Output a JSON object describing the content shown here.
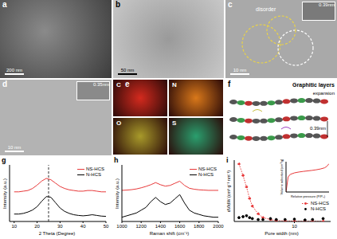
{
  "panels": {
    "a": {
      "label": "a",
      "scale_bar": "200 nm"
    },
    "b": {
      "label": "b",
      "scale_bar": "50 nm"
    },
    "c": {
      "label": "c",
      "scale_bar": "10 nm",
      "annotation": "disorder",
      "inset_label": "0.39nm"
    },
    "d": {
      "label": "d",
      "scale_bar": "10 nm",
      "inset_label": "0.35nm"
    },
    "e": {
      "label": "e",
      "maps": [
        {
          "element": "C",
          "color": "#d42a1e"
        },
        {
          "element": "N",
          "color": "#d9781a"
        },
        {
          "element": "O",
          "color": "#a89a2a"
        },
        {
          "element": "S",
          "color": "#2a9f6e"
        }
      ]
    },
    "f": {
      "label": "f",
      "title": "Graphitic layers",
      "annotation": "expansion",
      "spacing_label": "0.39nm"
    }
  },
  "chart_data": [
    {
      "panel": "g",
      "type": "line",
      "xlabel": "2 Theta (Degree)",
      "ylabel": "Intensity (a.u.)",
      "x": [
        10,
        12,
        14,
        16,
        18,
        20,
        22,
        24,
        26,
        28,
        30,
        32,
        34,
        36,
        38,
        40,
        42,
        44,
        46,
        48,
        50
      ],
      "series": [
        {
          "name": "NS-HCS",
          "color": "#e8393a",
          "line_style": "solid",
          "values": [
            2.2,
            2.2,
            2.25,
            2.3,
            2.45,
            2.7,
            3.0,
            3.2,
            3.1,
            2.85,
            2.6,
            2.45,
            2.35,
            2.3,
            2.25,
            2.25,
            2.3,
            2.3,
            2.25,
            2.2,
            2.2
          ]
        },
        {
          "name": "N-HCS",
          "color": "#000000",
          "line_style": "solid",
          "values": [
            0.55,
            0.55,
            0.6,
            0.7,
            0.85,
            1.1,
            1.5,
            1.85,
            1.8,
            1.4,
            1.0,
            0.75,
            0.6,
            0.5,
            0.45,
            0.42,
            0.45,
            0.5,
            0.45,
            0.4,
            0.38
          ]
        }
      ],
      "xlim": [
        8,
        50
      ],
      "xticks": [
        10,
        20,
        30,
        40,
        50
      ],
      "ylim": [
        0,
        4.2
      ],
      "tick_labels": "x",
      "legend": "upper right",
      "reference_x": 25
    },
    {
      "panel": "h",
      "type": "line",
      "xlabel": "Raman shift (cm⁻¹)",
      "ylabel": "Intensity (a.u.)",
      "x": [
        1000,
        1050,
        1100,
        1150,
        1200,
        1250,
        1300,
        1350,
        1400,
        1450,
        1500,
        1550,
        1600,
        1650,
        1700,
        1750,
        1800,
        1850,
        1900,
        1950,
        2000
      ],
      "series": [
        {
          "name": "NS-HCS",
          "color": "#e8393a",
          "line_style": "solid",
          "values": [
            2.2,
            2.22,
            2.25,
            2.3,
            2.38,
            2.48,
            2.6,
            2.75,
            2.6,
            2.5,
            2.55,
            2.7,
            2.85,
            2.55,
            2.35,
            2.28,
            2.24,
            2.22,
            2.2,
            2.2,
            2.2
          ]
        },
        {
          "name": "N-HCS",
          "color": "#000000",
          "line_style": "solid",
          "values": [
            0.3,
            0.4,
            0.5,
            0.6,
            0.8,
            1.0,
            1.4,
            1.7,
            1.4,
            1.2,
            1.3,
            1.6,
            1.9,
            1.3,
            0.8,
            0.6,
            0.5,
            0.4,
            0.35,
            0.3,
            0.3
          ]
        }
      ],
      "xlim": [
        1000,
        2000
      ],
      "xticks": [
        1000,
        1200,
        1400,
        1600,
        1800,
        2000
      ],
      "ylim": [
        0,
        4
      ],
      "tick_labels": "x",
      "legend": "upper right"
    },
    {
      "panel": "i",
      "type": "scatter",
      "xlabel": "Pore width (nm)",
      "ylabel": "dV/dW (cm³ g⁻¹ nm⁻¹)",
      "log": "x",
      "x": [
        1.2,
        1.4,
        1.6,
        1.8,
        2,
        2.5,
        3,
        4,
        5,
        7,
        10,
        15,
        20,
        30
      ],
      "series": [
        {
          "name": "NS-HCS",
          "color": "#e8393a",
          "marker": "circle",
          "line_style": "dotted",
          "values": [
            3.0,
            2.4,
            1.8,
            1.2,
            0.8,
            0.4,
            0.2,
            0.1,
            0.05,
            0.03,
            0.02,
            0.01,
            0.01,
            0.01
          ]
        },
        {
          "name": "N-HCS",
          "color": "#000000",
          "marker": "circle",
          "line_style": "none",
          "values": [
            0.2,
            0.25,
            0.3,
            0.2,
            0.15,
            0.1,
            0.1,
            0.15,
            0.1,
            0.1,
            0.12,
            0.08,
            0.1,
            0.15
          ]
        }
      ],
      "xlim": [
        1,
        40
      ],
      "xticks": [
        10
      ],
      "ylim": [
        0,
        3.2
      ],
      "tick_labels": "x",
      "legend": "right",
      "inset": {
        "type": "line",
        "xlabel": "Relative pressure (P/P₀)",
        "ylabel": "Volume adsorbed (cm³/g)",
        "x": [
          0,
          0.05,
          0.1,
          0.2,
          0.3,
          0.4,
          0.5,
          0.6,
          0.7,
          0.8,
          0.9,
          0.95,
          1.0
        ],
        "series": [
          {
            "color": "#e8393a",
            "line_style": "solid",
            "values": [
              0,
              150,
              175,
              190,
              198,
              204,
              209,
              214,
              220,
              228,
              240,
              255,
              280
            ]
          }
        ],
        "xlim": [
          0,
          1
        ],
        "ylim": [
          0,
          300
        ],
        "tick_labels": false
      }
    }
  ]
}
